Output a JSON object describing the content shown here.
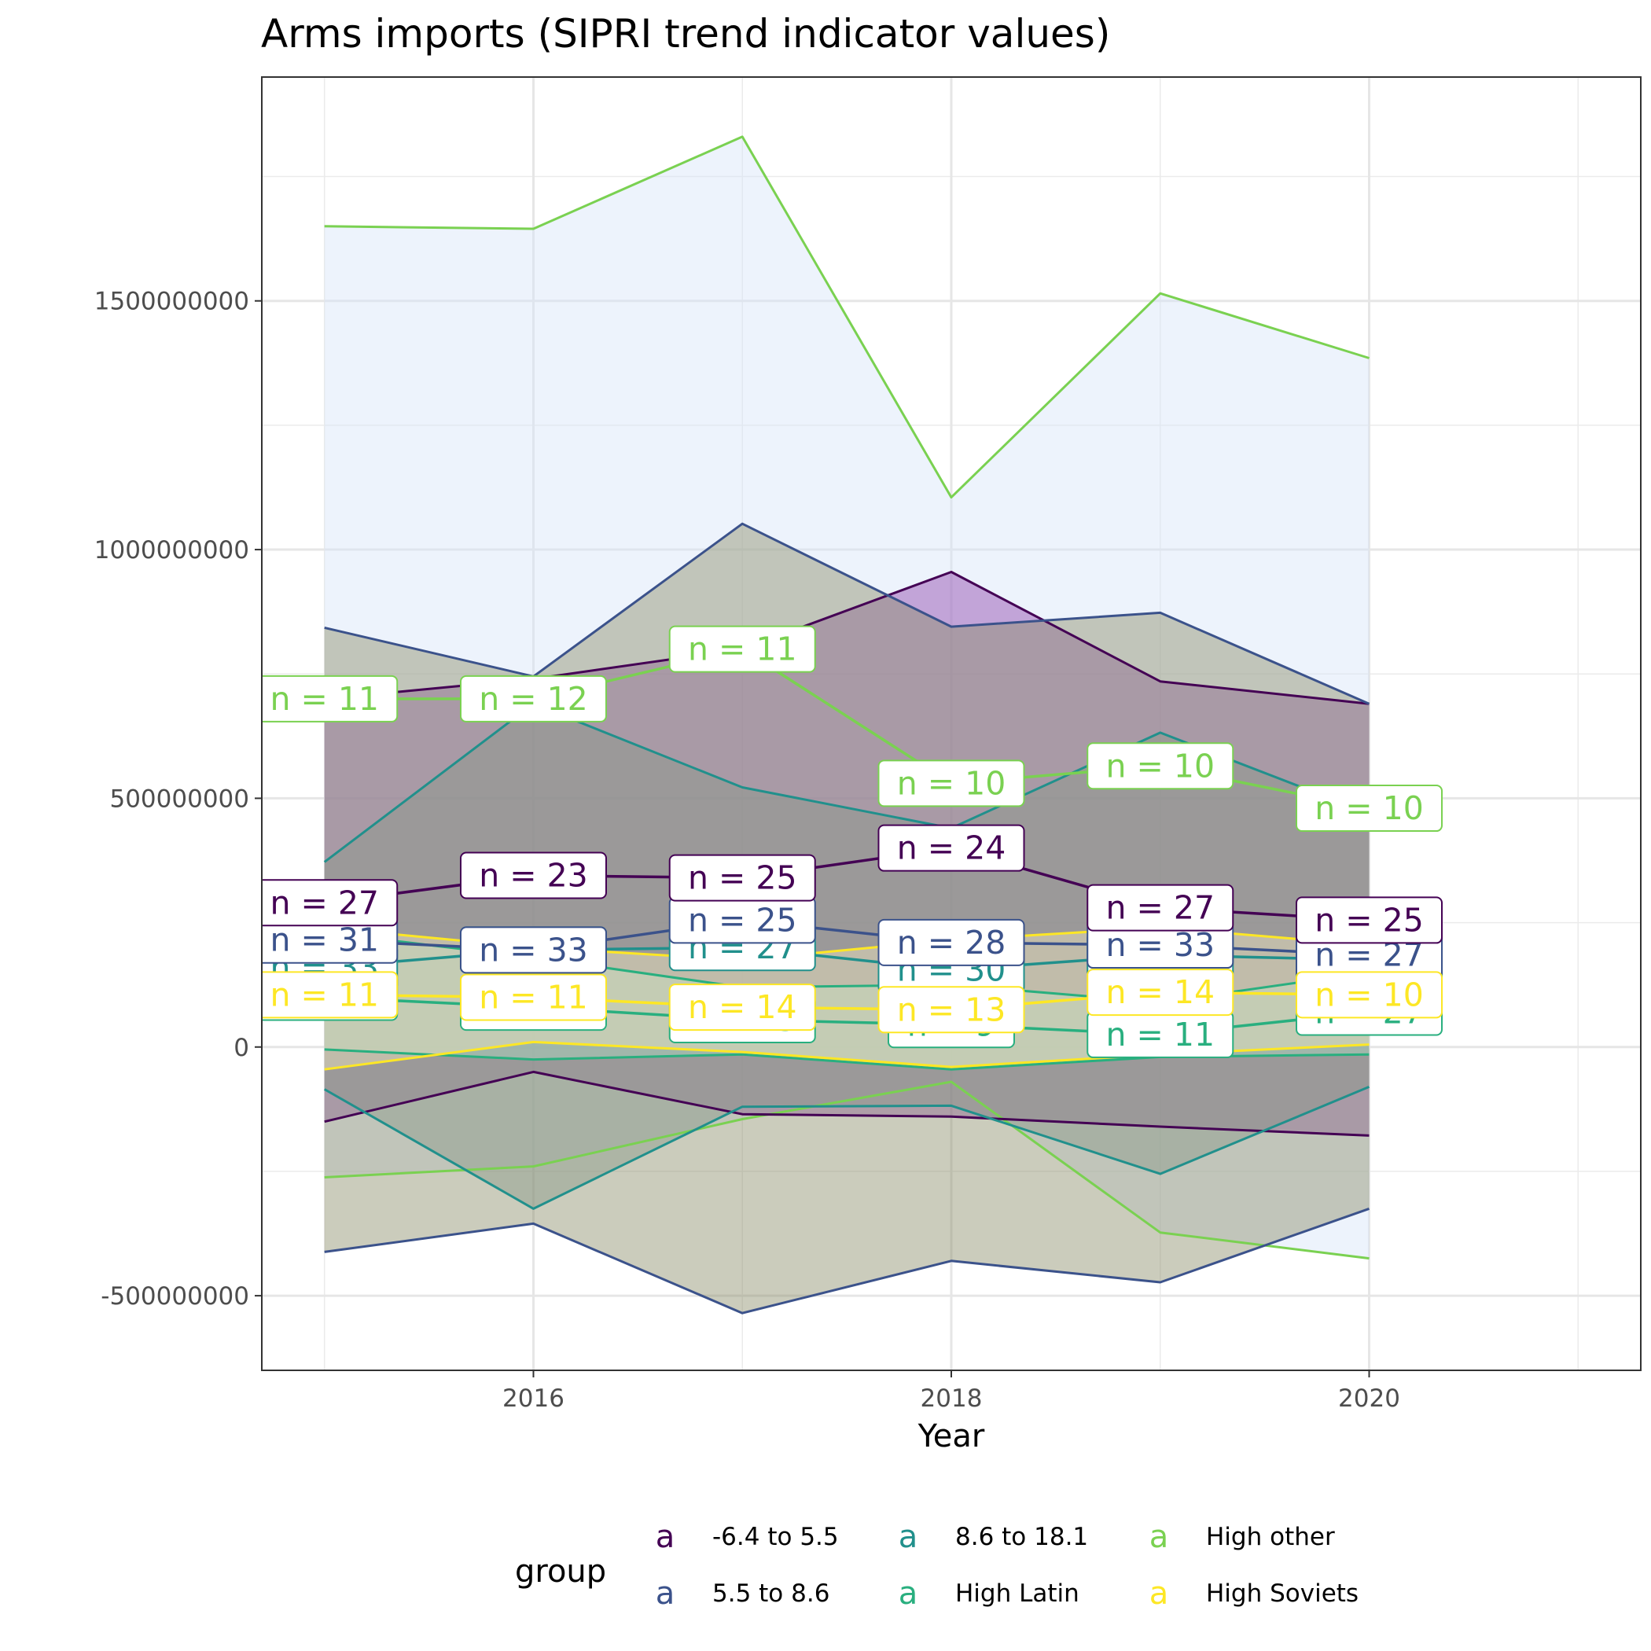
{
  "chart_data": {
    "type": "line",
    "title": "Arms imports (SIPRI trend indicator values)",
    "xlabel": "Year",
    "ylabel": "",
    "xlim": [
      2014.7,
      2021.3
    ],
    "ylim": [
      -650000000,
      1950000000
    ],
    "x_ticks": [
      2016,
      2018,
      2020
    ],
    "y_ticks": [
      -500000000,
      0,
      500000000,
      1000000000,
      1500000000
    ],
    "y_tick_labels": [
      "-500000000",
      "0",
      "500000000",
      "1000000000",
      "1500000000"
    ],
    "x_tick_labels": [
      "2016",
      "2018",
      "2020"
    ],
    "grid": true,
    "legend": {
      "title": "group",
      "position": "bottom",
      "key_glyph": "a"
    },
    "x": [
      2015,
      2016,
      2017,
      2018,
      2019,
      2020
    ],
    "series": [
      {
        "name": "-6.4 to 5.5",
        "color": "#440154",
        "fill": "#8e44ad",
        "mean": [
          290000000,
          345000000,
          340000000,
          400000000,
          280000000,
          255000000
        ],
        "upper": [
          700000000,
          740000000,
          800000000,
          955000000,
          735000000,
          690000000
        ],
        "lower": [
          -150000000,
          -50000000,
          -135000000,
          -140000000,
          -160000000,
          -178000000
        ],
        "n": [
          27,
          23,
          25,
          24,
          27,
          25
        ]
      },
      {
        "name": "5.5 to 8.6",
        "color": "#3b528b",
        "fill": "#8b8f6a",
        "mean": [
          215000000,
          195000000,
          255000000,
          210000000,
          205000000,
          185000000
        ],
        "upper": [
          843000000,
          745000000,
          1052000000,
          845000000,
          873000000,
          690000000
        ],
        "lower": [
          -412000000,
          -355000000,
          -535000000,
          -430000000,
          -473000000,
          -325000000
        ],
        "n": [
          31,
          33,
          25,
          28,
          33,
          27
        ]
      },
      {
        "name": "8.6 to 18.1",
        "color": "#21908c",
        "fill": "#8a9a8a",
        "mean": [
          160000000,
          195000000,
          200000000,
          155000000,
          185000000,
          175000000
        ],
        "upper": [
          372000000,
          690000000,
          522000000,
          440000000,
          632000000,
          470000000
        ],
        "lower": [
          -85000000,
          -325000000,
          -120000000,
          -118000000,
          -255000000,
          -80000000
        ],
        "n": [
          33,
          33,
          27,
          30,
          33,
          27
        ]
      },
      {
        "name": "High Latin",
        "color": "#29af7f",
        "fill": "#a8dcc0",
        "mean": [
          100000000,
          80000000,
          55000000,
          45000000,
          25000000,
          70000000
        ],
        "upper": [
          230000000,
          180000000,
          120000000,
          125000000,
          90000000,
          150000000
        ],
        "lower": [
          -5000000,
          -25000000,
          -15000000,
          -45000000,
          -20000000,
          -15000000
        ],
        "n": [
          33,
          33,
          25,
          9,
          11,
          27
        ]
      },
      {
        "name": "High other",
        "color": "#7ad151",
        "fill": "#d6e4f8",
        "mean": [
          700000000,
          700000000,
          800000000,
          530000000,
          565000000,
          480000000
        ],
        "upper": [
          1650000000,
          1645000000,
          1830000000,
          1105000000,
          1515000000,
          1385000000
        ],
        "lower": [
          -262000000,
          -240000000,
          -145000000,
          -70000000,
          -373000000,
          -425000000
        ],
        "n": [
          11,
          12,
          11,
          10,
          10,
          10
        ]
      },
      {
        "name": "High Soviets",
        "color": "#fde725",
        "fill": "#efe7bf",
        "mean": [
          105000000,
          100000000,
          80000000,
          75000000,
          110000000,
          105000000
        ],
        "upper": [
          240000000,
          200000000,
          175000000,
          215000000,
          240000000,
          205000000
        ],
        "lower": [
          -45000000,
          10000000,
          -10000000,
          -40000000,
          -15000000,
          5000000
        ],
        "n": [
          11,
          11,
          14,
          13,
          14,
          10
        ]
      }
    ]
  }
}
